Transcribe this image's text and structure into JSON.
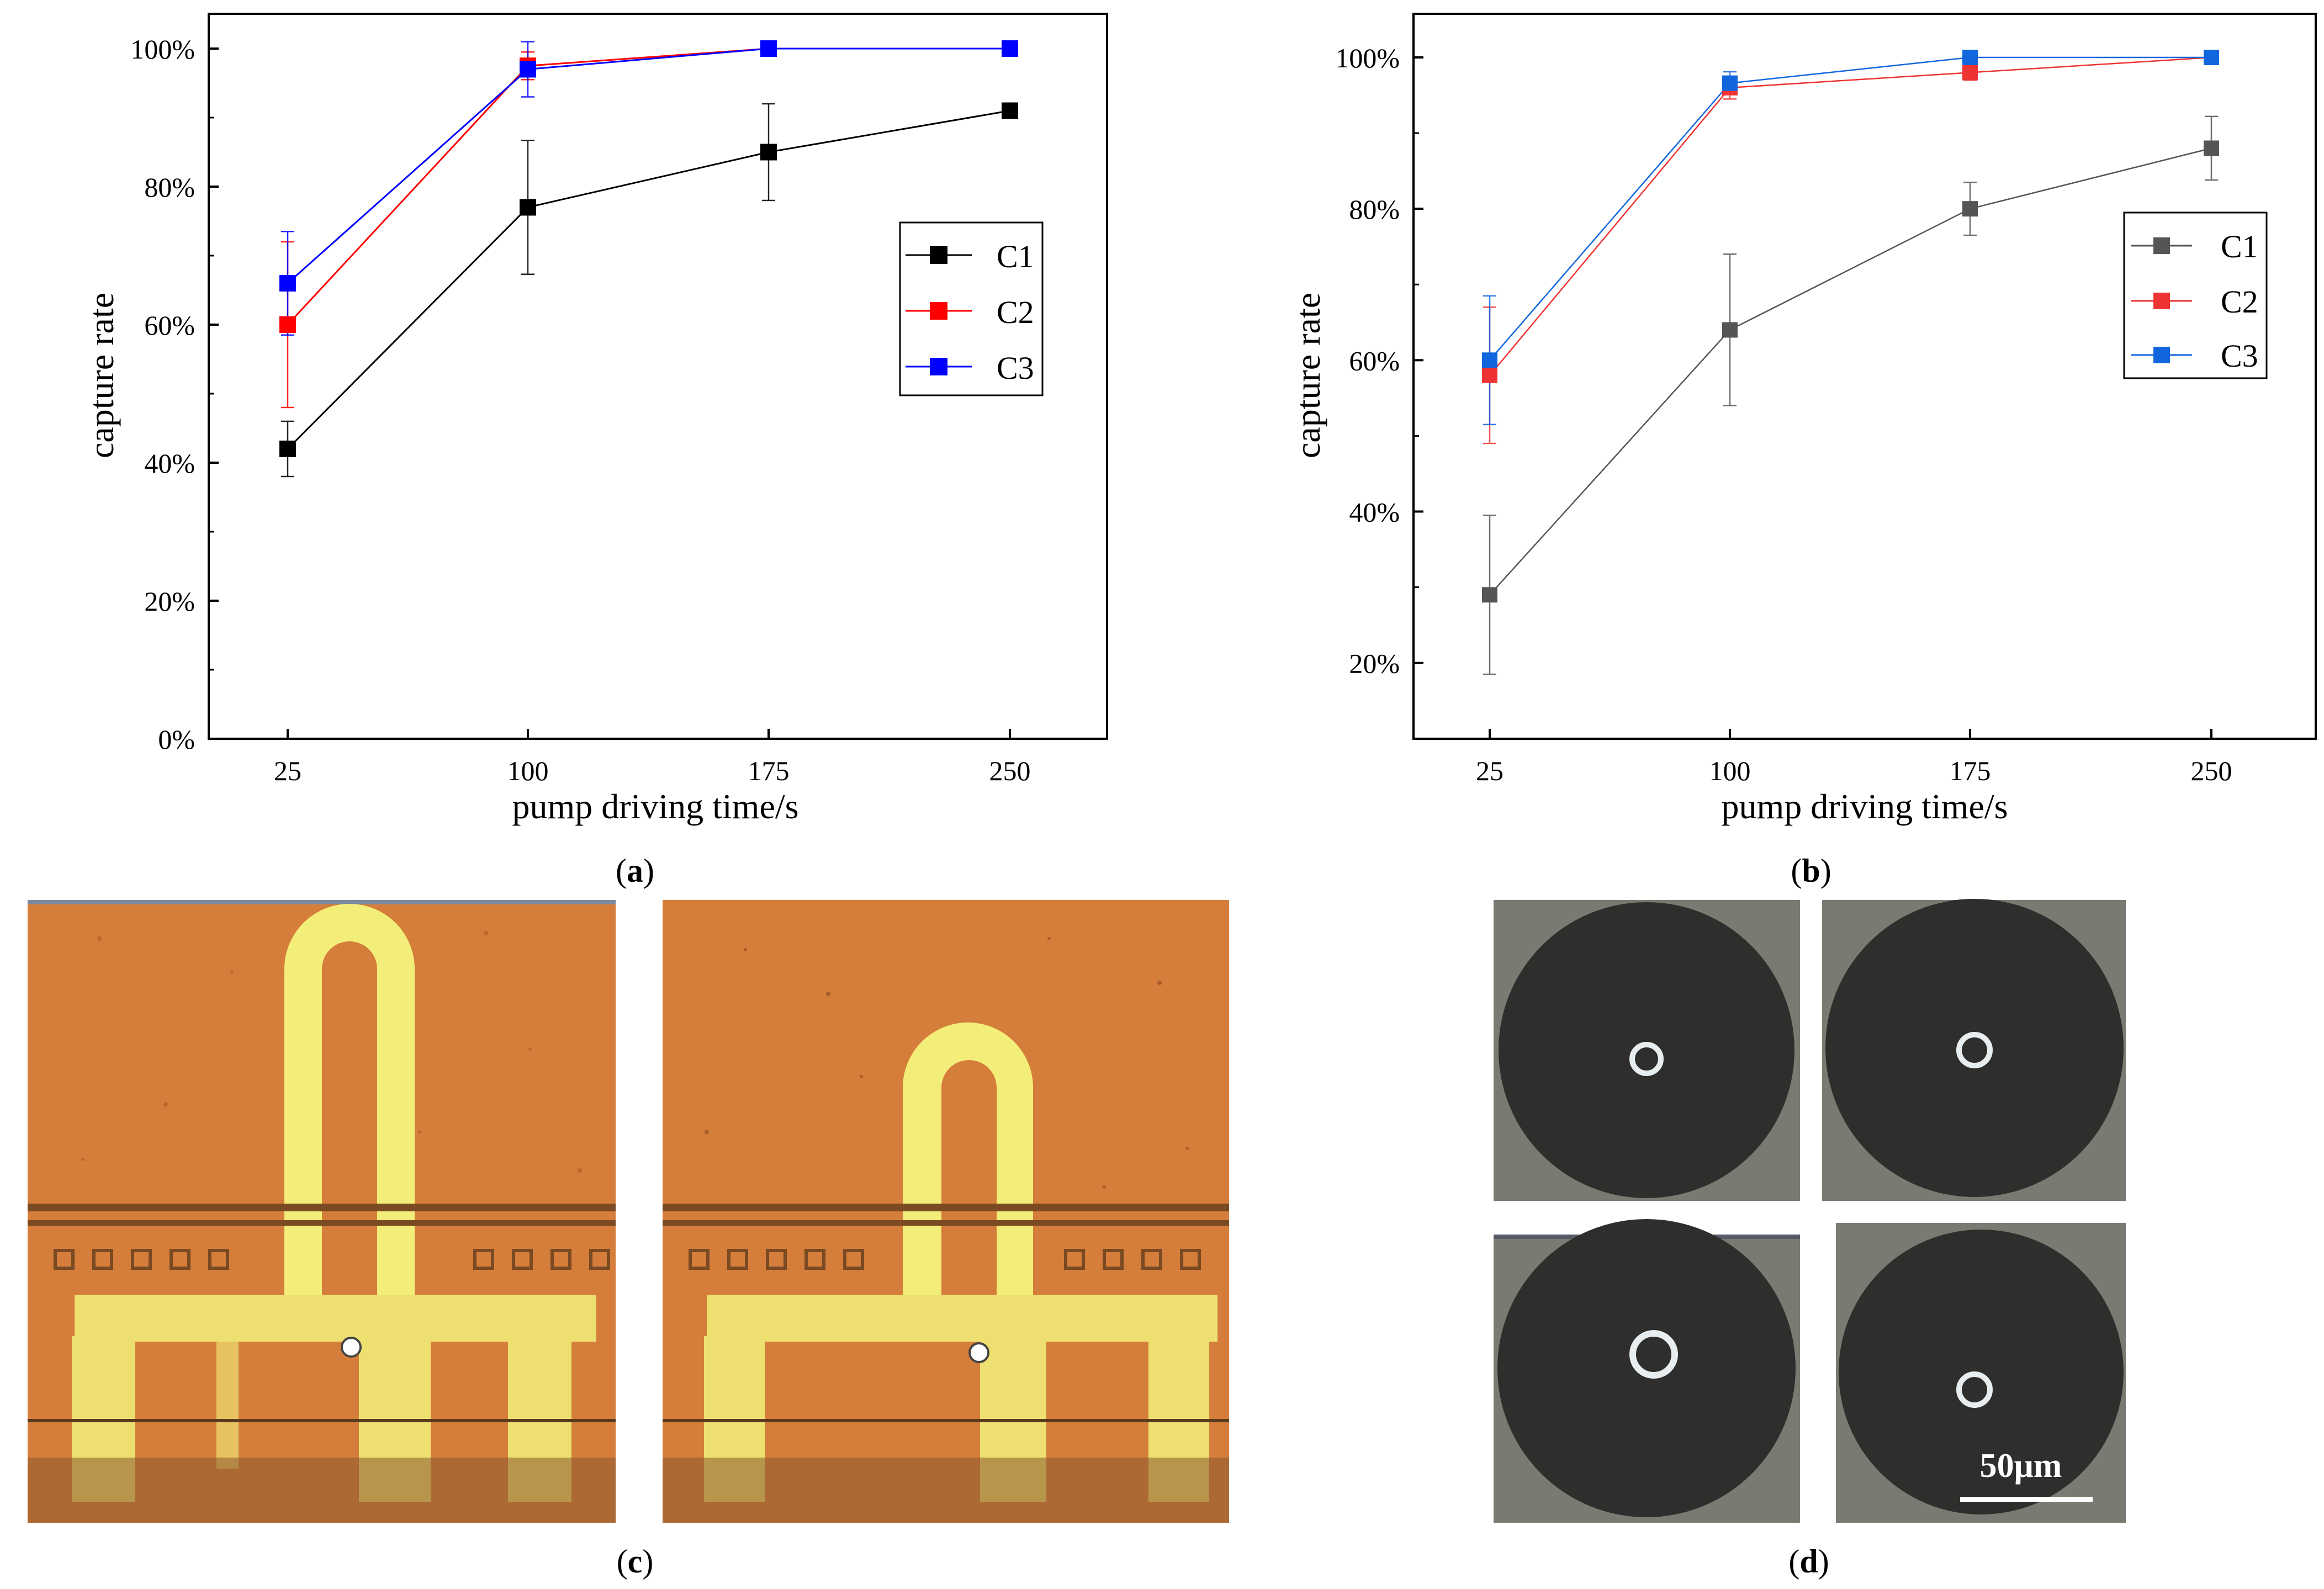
{
  "panels": {
    "a": {
      "label": "(a)",
      "letter": "a"
    },
    "b": {
      "label": "(b)",
      "letter": "b"
    },
    "c": {
      "label": "(c)",
      "letter": "c"
    },
    "d": {
      "label": "(d)",
      "letter": "d"
    }
  },
  "chart_data": [
    {
      "id": "a",
      "type": "line",
      "title": "",
      "xlabel": "pump driving time/s",
      "ylabel": "capture rate",
      "categories": [
        "25",
        "100",
        "175",
        "250"
      ],
      "x": [
        25,
        100,
        175,
        250
      ],
      "xlim": [
        0,
        275
      ],
      "ylim": [
        0,
        1.04
      ],
      "yticks": [
        0,
        0.2,
        0.4,
        0.6,
        0.8,
        1.0
      ],
      "ytick_labels": [
        "0%",
        "20%",
        "40%",
        "60%",
        "80%",
        "100%"
      ],
      "legend": "right",
      "series": [
        {
          "name": "C1",
          "color": "#000000",
          "values": [
            0.42,
            0.77,
            0.85,
            0.91
          ],
          "err": [
            0.04,
            0.097,
            0.07,
            0
          ]
        },
        {
          "name": "C2",
          "color": "#ff0000",
          "values": [
            0.6,
            0.975,
            1.0,
            1.0
          ],
          "err": [
            0.12,
            0.02,
            0.005,
            0
          ]
        },
        {
          "name": "C3",
          "color": "#0000ff",
          "values": [
            0.66,
            0.97,
            1.0,
            1.0
          ],
          "err": [
            0.075,
            0.04,
            0.005,
            0
          ]
        }
      ]
    },
    {
      "id": "b",
      "type": "line",
      "title": "",
      "xlabel": "pump driving time/s",
      "ylabel": "capture rate",
      "categories": [
        "25",
        "100",
        "175",
        "250"
      ],
      "x": [
        25,
        100,
        175,
        250
      ],
      "xlim": [
        0,
        275
      ],
      "ylim": [
        0.1,
        1.05
      ],
      "yticks": [
        0.2,
        0.4,
        0.6,
        0.8,
        1.0
      ],
      "ytick_labels": [
        "20%",
        "40%",
        "60%",
        "80%",
        "100%"
      ],
      "legend": "right",
      "series": [
        {
          "name": "C1",
          "color": "#555555",
          "values": [
            0.29,
            0.64,
            0.8,
            0.88
          ],
          "err": [
            0.105,
            0.1,
            0.035,
            0.042
          ]
        },
        {
          "name": "C2",
          "color": "#ee3333",
          "values": [
            0.58,
            0.96,
            0.98,
            1.0
          ],
          "err": [
            0.09,
            0.015,
            0.01,
            0
          ]
        },
        {
          "name": "C3",
          "color": "#1166dd",
          "values": [
            0.6,
            0.966,
            1.0,
            1.0
          ],
          "err": [
            0.085,
            0.015,
            0.005,
            0
          ]
        }
      ]
    }
  ],
  "panel_d": {
    "scale_bar": "50μm"
  },
  "colors": {
    "chip_bg": "#d57d3a",
    "gold": "#f0e86a",
    "microscope_bg": "#7a7a72",
    "well": "#2e2e2c"
  }
}
